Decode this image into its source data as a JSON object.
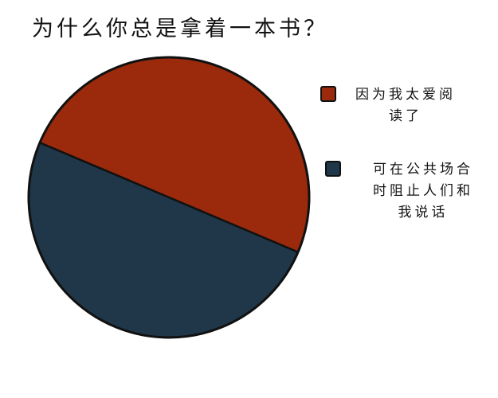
{
  "chart_data": {
    "type": "pie",
    "title": "为什么你总是拿着一本书？",
    "slices": [
      {
        "label": "因为我太爱阅读了",
        "label_lines": [
          "因为我太爱阅",
          "读了"
        ],
        "value": 50,
        "color": "#9b2a0c"
      },
      {
        "label": "可在公共场合时阻止人们和我说话",
        "label_lines": [
          "可在公共场合",
          "时阻止人们和",
          "我说话"
        ],
        "value": 50,
        "color": "#1f3748"
      }
    ],
    "legend_placement": "right",
    "outline_color": "#111111"
  }
}
